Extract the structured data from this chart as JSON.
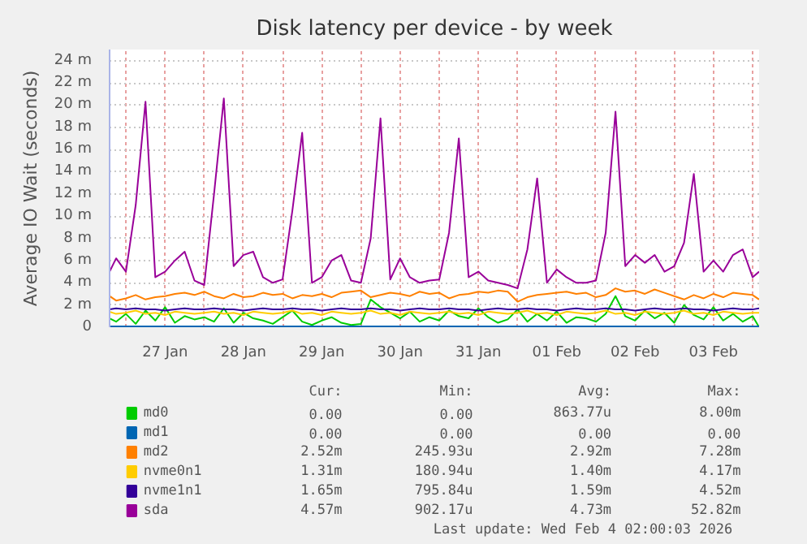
{
  "chart_data": {
    "type": "line",
    "title": "Disk latency per device - by week",
    "ylabel": "Average IO Wait (seconds)",
    "x": [
      "2026-01-26T19:00",
      "2026-01-26T21:00",
      "2026-01-27T00:00",
      "2026-01-27T03:00",
      "2026-01-27T06:00",
      "2026-01-27T09:00",
      "2026-01-27T12:00",
      "2026-01-27T15:00",
      "2026-01-27T18:00",
      "2026-01-27T21:00",
      "2026-01-28T00:00",
      "2026-01-28T03:00",
      "2026-01-28T06:00",
      "2026-01-28T09:00",
      "2026-01-28T12:00",
      "2026-01-28T15:00",
      "2026-01-28T18:00",
      "2026-01-28T21:00",
      "2026-01-29T00:00",
      "2026-01-29T03:00",
      "2026-01-29T06:00",
      "2026-01-29T09:00",
      "2026-01-29T12:00",
      "2026-01-29T15:00",
      "2026-01-29T18:00",
      "2026-01-29T21:00",
      "2026-01-30T00:00",
      "2026-01-30T03:00",
      "2026-01-30T06:00",
      "2026-01-30T09:00",
      "2026-01-30T12:00",
      "2026-01-30T15:00",
      "2026-01-30T18:00",
      "2026-01-30T21:00",
      "2026-01-31T00:00",
      "2026-01-31T03:00",
      "2026-01-31T06:00",
      "2026-01-31T09:00",
      "2026-01-31T12:00",
      "2026-01-31T15:00",
      "2026-01-31T18:00",
      "2026-01-31T21:00",
      "2026-02-01T00:00",
      "2026-02-01T03:00",
      "2026-02-01T06:00",
      "2026-02-01T09:00",
      "2026-02-01T12:00",
      "2026-02-01T15:00",
      "2026-02-01T18:00",
      "2026-02-01T21:00",
      "2026-02-02T00:00",
      "2026-02-02T03:00",
      "2026-02-02T06:00",
      "2026-02-02T09:00",
      "2026-02-02T12:00",
      "2026-02-02T15:00",
      "2026-02-02T18:00",
      "2026-02-02T21:00",
      "2026-02-03T00:00",
      "2026-02-03T03:00",
      "2026-02-03T06:00",
      "2026-02-03T09:00",
      "2026-02-03T12:00",
      "2026-02-03T15:00",
      "2026-02-03T18:00",
      "2026-02-03T21:00",
      "2026-02-04T00:00",
      "2026-02-04T02:00"
    ],
    "series": [
      {
        "name": "md0",
        "color": "#00cc00",
        "values": [
          0.8,
          0.5,
          1.2,
          0.3,
          1.5,
          0.6,
          1.8,
          0.4,
          1.0,
          0.7,
          0.9,
          0.5,
          1.7,
          0.4,
          1.3,
          0.8,
          0.6,
          0.3,
          0.9,
          1.5,
          0.5,
          0.2,
          0.6,
          0.9,
          0.4,
          0.2,
          0.3,
          2.5,
          1.8,
          1.3,
          0.8,
          1.4,
          0.5,
          0.9,
          0.6,
          1.5,
          1.0,
          0.8,
          1.7,
          0.9,
          0.4,
          0.7,
          1.6,
          0.5,
          1.2,
          0.6,
          1.4,
          0.4,
          0.9,
          0.8,
          0.5,
          1.2,
          2.8,
          1.0,
          0.6,
          1.5,
          0.8,
          1.3,
          0.4,
          2.0,
          1.1,
          0.7,
          1.8,
          0.6,
          1.2,
          0.5,
          1.0,
          0.0
        ]
      },
      {
        "name": "md1",
        "color": "#0066b3",
        "values": [
          0,
          0,
          0,
          0,
          0,
          0,
          0,
          0,
          0,
          0,
          0,
          0,
          0,
          0,
          0,
          0,
          0,
          0,
          0,
          0,
          0,
          0,
          0,
          0,
          0,
          0,
          0,
          0,
          0,
          0,
          0,
          0,
          0,
          0,
          0,
          0,
          0,
          0,
          0,
          0,
          0,
          0,
          0,
          0,
          0,
          0,
          0,
          0,
          0,
          0,
          0,
          0,
          0,
          0,
          0,
          0,
          0,
          0,
          0,
          0,
          0,
          0,
          0,
          0,
          0,
          0,
          0,
          0
        ]
      },
      {
        "name": "md2",
        "color": "#ff8000",
        "values": [
          2.8,
          2.4,
          2.6,
          2.9,
          2.5,
          2.7,
          2.8,
          3.0,
          3.1,
          2.9,
          3.2,
          2.8,
          2.6,
          3.0,
          2.7,
          2.8,
          3.1,
          2.9,
          3.0,
          2.6,
          2.9,
          2.8,
          3.0,
          2.7,
          3.1,
          3.2,
          3.3,
          2.7,
          2.9,
          3.1,
          3.0,
          2.8,
          3.2,
          3.0,
          3.1,
          2.6,
          2.9,
          3.0,
          3.2,
          3.1,
          3.3,
          3.2,
          2.3,
          2.7,
          2.9,
          3.0,
          3.1,
          3.2,
          3.0,
          3.1,
          2.7,
          2.9,
          3.5,
          3.2,
          3.3,
          3.0,
          3.4,
          3.1,
          2.8,
          2.5,
          2.9,
          2.6,
          3.0,
          2.7,
          3.1,
          3.0,
          2.9,
          2.5
        ]
      },
      {
        "name": "nvme0n1",
        "color": "#ffcc00",
        "values": [
          1.4,
          1.2,
          1.3,
          1.5,
          1.2,
          1.3,
          1.1,
          1.4,
          1.3,
          1.2,
          1.3,
          1.4,
          1.2,
          1.3,
          1.1,
          1.4,
          1.3,
          1.2,
          1.3,
          1.5,
          1.2,
          1.3,
          1.1,
          1.4,
          1.3,
          1.2,
          1.3,
          1.5,
          1.2,
          1.3,
          1.1,
          1.4,
          1.3,
          1.2,
          1.3,
          1.4,
          1.2,
          1.3,
          1.1,
          1.4,
          1.3,
          1.2,
          1.3,
          1.5,
          1.2,
          1.3,
          1.1,
          1.4,
          1.3,
          1.2,
          1.3,
          1.5,
          1.2,
          1.3,
          1.1,
          1.4,
          1.3,
          1.2,
          1.3,
          1.5,
          1.2,
          1.3,
          1.1,
          1.4,
          1.3,
          1.2,
          1.3,
          1.3
        ]
      },
      {
        "name": "nvme1n1",
        "color": "#330099",
        "values": [
          1.6,
          1.7,
          1.6,
          1.7,
          1.6,
          1.6,
          1.5,
          1.6,
          1.7,
          1.6,
          1.6,
          1.7,
          1.6,
          1.6,
          1.5,
          1.6,
          1.7,
          1.6,
          1.6,
          1.7,
          1.6,
          1.6,
          1.5,
          1.6,
          1.7,
          1.6,
          1.6,
          1.7,
          1.6,
          1.6,
          1.5,
          1.6,
          1.7,
          1.6,
          1.6,
          1.7,
          1.6,
          1.6,
          1.5,
          1.6,
          1.7,
          1.6,
          1.6,
          1.7,
          1.6,
          1.6,
          1.5,
          1.6,
          1.7,
          1.6,
          1.6,
          1.7,
          1.6,
          1.6,
          1.5,
          1.6,
          1.7,
          1.6,
          1.6,
          1.7,
          1.6,
          1.6,
          1.5,
          1.6,
          1.7,
          1.6,
          1.6,
          1.7
        ]
      },
      {
        "name": "sda",
        "color": "#990099",
        "values": [
          5.0,
          6.2,
          5.0,
          11.0,
          20.3,
          4.5,
          5.0,
          6.0,
          6.8,
          4.2,
          3.8,
          12.0,
          20.6,
          5.5,
          6.5,
          6.8,
          4.5,
          4.0,
          4.3,
          10.5,
          17.5,
          4.0,
          4.5,
          6.0,
          6.5,
          4.2,
          4.0,
          8.0,
          18.8,
          4.3,
          6.2,
          4.5,
          4.0,
          4.2,
          4.3,
          8.5,
          17.0,
          4.5,
          5.0,
          4.2,
          4.0,
          3.8,
          3.5,
          7.0,
          13.4,
          4.0,
          5.2,
          4.5,
          4.0,
          4.0,
          4.2,
          8.5,
          19.4,
          5.5,
          6.5,
          5.8,
          6.5,
          5.0,
          5.5,
          7.6,
          13.8,
          5.0,
          6.0,
          5.0,
          6.5,
          7.0,
          4.5,
          5.0
        ]
      }
    ],
    "xlim": [
      "2026-01-26T19:00",
      "2026-02-04T02:00"
    ],
    "xticks": [
      {
        "value": "2026-01-27T00:00",
        "label": null
      },
      {
        "value": "2026-01-27T12:00",
        "label": "27 Jan"
      },
      {
        "value": "2026-01-28T00:00",
        "label": null
      },
      {
        "value": "2026-01-28T12:00",
        "label": "28 Jan"
      },
      {
        "value": "2026-01-29T00:00",
        "label": null
      },
      {
        "value": "2026-01-29T12:00",
        "label": "29 Jan"
      },
      {
        "value": "2026-01-30T00:00",
        "label": null
      },
      {
        "value": "2026-01-30T12:00",
        "label": "30 Jan"
      },
      {
        "value": "2026-01-31T00:00",
        "label": null
      },
      {
        "value": "2026-01-31T12:00",
        "label": "31 Jan"
      },
      {
        "value": "2026-02-01T00:00",
        "label": null
      },
      {
        "value": "2026-02-01T12:00",
        "label": "01 Feb"
      },
      {
        "value": "2026-02-02T00:00",
        "label": null
      },
      {
        "value": "2026-02-02T12:00",
        "label": "02 Feb"
      },
      {
        "value": "2026-02-03T00:00",
        "label": null
      },
      {
        "value": "2026-02-03T12:00",
        "label": "03 Feb"
      },
      {
        "value": "2026-02-04T00:00",
        "label": null
      }
    ],
    "ylim": [
      0,
      25
    ],
    "yticks": [
      0,
      {
        "value": 2,
        "label": "2 m"
      },
      {
        "value": 4,
        "label": "4 m"
      },
      {
        "value": 6,
        "label": "6 m"
      },
      {
        "value": 8,
        "label": "8 m"
      },
      {
        "value": 10,
        "label": "10 m"
      },
      {
        "value": 12,
        "label": "12 m"
      },
      {
        "value": 14,
        "label": "14 m"
      },
      {
        "value": 16,
        "label": "16 m"
      },
      {
        "value": 18,
        "label": "18 m"
      },
      {
        "value": 20,
        "label": "20 m"
      },
      {
        "value": 22,
        "label": "22 m"
      },
      {
        "value": 24,
        "label": "24 m"
      }
    ],
    "grid": true,
    "legend": "bottom",
    "annotations": [
      "Cur:",
      "Min:",
      "Avg:",
      "Max:",
      "0.00",
      "0.00",
      "863.77u",
      "8.00m",
      "0.00",
      "0.00",
      "0.00",
      "0.00",
      "2.52m",
      "245.93u",
      "2.92m",
      "7.28m",
      "1.31m",
      "180.94u",
      "1.40m",
      "4.17m",
      "1.65m",
      "795.84u",
      "1.59m",
      "4.52m",
      "4.57m",
      "902.17u",
      "4.73m",
      "52.82m",
      "Last update: Wed Feb  4 02:00:03 2026"
    ]
  }
}
